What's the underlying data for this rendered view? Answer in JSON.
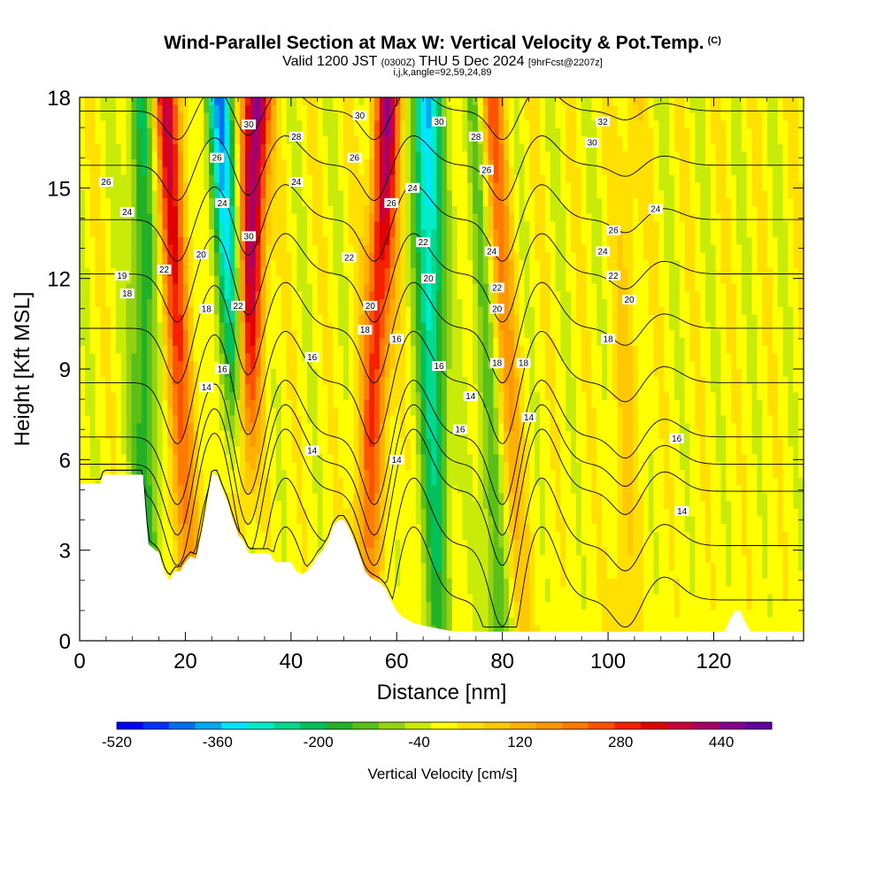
{
  "header": {
    "title": "Wind-Parallel Section at Max W: Vertical Velocity & Pot.Temp.",
    "copyright": "(C)",
    "valid_a": "Valid 1200 JST",
    "valid_b": "(0300Z)",
    "valid_c": "THU 5 Dec 2024",
    "valid_d": "[9hrFcst@2207z]",
    "indices": "i,j,k,angle=92,59,24,89"
  },
  "chart_data": {
    "type": "heatmap",
    "xlabel": "Distance [nm]",
    "ylabel": "Height [Kft MSL]",
    "xlim": [
      0,
      137
    ],
    "ylim": [
      0,
      18
    ],
    "x_ticks": [
      0,
      20,
      40,
      60,
      80,
      100,
      120
    ],
    "y_ticks": [
      0,
      3,
      6,
      9,
      12,
      15,
      18
    ],
    "colorbar_label": "Vertical Velocity [cm/s]",
    "colorbar_range": [
      -520,
      520
    ],
    "colorbar_ticks": [
      -520,
      -360,
      -200,
      -40,
      120,
      280,
      440
    ],
    "colorbar_colors": [
      "#0000ff",
      "#0033ff",
      "#0070f0",
      "#00a8f0",
      "#00e6ff",
      "#00ebc8",
      "#00d890",
      "#00c05a",
      "#22b026",
      "#5ac018",
      "#96d214",
      "#c8eb0a",
      "#ffff00",
      "#ffe000",
      "#ffc800",
      "#ffb000",
      "#ff9800",
      "#ff7a00",
      "#ff5200",
      "#f52000",
      "#e00000",
      "#c8003c",
      "#a80064",
      "#880090",
      "#6000a0"
    ],
    "updraft_bands": [
      {
        "x_base": 21.0,
        "x_top": 16.5,
        "value": 360
      },
      {
        "x_base": 30.0,
        "x_top": 33.5,
        "value": 500
      },
      {
        "x_base": 53.5,
        "x_top": 58.5,
        "value": 420
      },
      {
        "x_base": 83.0,
        "x_top": 77.5,
        "value": 280
      },
      {
        "x_base": 103.0,
        "x_top": 104.0,
        "value": 60
      }
    ],
    "downdraft_bands": [
      {
        "x_base": 32.0,
        "x_top": 26.5,
        "value": -380
      },
      {
        "x_base": 68.0,
        "x_top": 65.5,
        "value": -400
      },
      {
        "x_base": 13.0,
        "x_top": 11.5,
        "value": -180
      },
      {
        "x_base": 80.0,
        "x_top": 75.0,
        "value": -160
      }
    ],
    "terrain": [
      [
        0,
        5.2
      ],
      [
        4,
        5.2
      ],
      [
        4.5,
        5.5
      ],
      [
        12,
        5.5
      ],
      [
        12.5,
        4.3
      ],
      [
        13,
        3.2
      ],
      [
        15,
        2.9
      ],
      [
        16,
        2.3
      ],
      [
        17,
        2
      ],
      [
        18,
        2.3
      ],
      [
        19,
        2.3
      ],
      [
        20,
        2.6
      ],
      [
        21,
        2.8
      ],
      [
        22,
        2.7
      ],
      [
        23,
        3.5
      ],
      [
        24,
        4.5
      ],
      [
        25,
        5.5
      ],
      [
        26,
        5.5
      ],
      [
        27,
        5
      ],
      [
        28,
        4.6
      ],
      [
        29,
        4
      ],
      [
        30,
        3.5
      ],
      [
        31,
        3.3
      ],
      [
        32,
        2.9
      ],
      [
        36,
        2.9
      ],
      [
        37,
        2.6
      ],
      [
        38,
        2.6
      ],
      [
        40,
        2.6
      ],
      [
        41,
        2.3
      ],
      [
        42,
        2.2
      ],
      [
        43,
        2.3
      ],
      [
        44,
        2.5
      ],
      [
        45,
        2.8
      ],
      [
        46,
        3
      ],
      [
        47,
        3.3
      ],
      [
        48,
        3.8
      ],
      [
        49,
        4
      ],
      [
        50,
        4
      ],
      [
        51,
        3.7
      ],
      [
        52,
        3.3
      ],
      [
        53,
        2.8
      ],
      [
        54,
        2.3
      ],
      [
        55,
        2.1
      ],
      [
        57,
        1.9
      ],
      [
        58,
        1.7
      ],
      [
        59,
        1.3
      ],
      [
        60,
        1
      ],
      [
        61,
        0.8
      ],
      [
        63,
        0.6
      ],
      [
        65,
        0.5
      ],
      [
        68,
        0.4
      ],
      [
        71,
        0.3
      ],
      [
        90,
        0.3
      ],
      [
        122,
        0.3
      ],
      [
        123,
        0.7
      ],
      [
        124,
        1
      ],
      [
        125,
        1
      ],
      [
        126,
        0.6
      ],
      [
        127,
        0.3
      ],
      [
        137,
        0.3
      ]
    ],
    "contours": [
      {
        "level": 14,
        "labels": [
          [
            24,
            8.4
          ],
          [
            44,
            6.3
          ],
          [
            60,
            6.0
          ],
          [
            74,
            8.1
          ],
          [
            85,
            7.4
          ],
          [
            114,
            4.3
          ]
        ]
      },
      {
        "level": 16,
        "labels": [
          [
            27,
            9.0
          ],
          [
            44,
            9.4
          ],
          [
            60,
            10.0
          ],
          [
            68,
            9.1
          ],
          [
            72,
            7.0
          ],
          [
            113,
            6.7
          ]
        ]
      },
      {
        "level": 18,
        "labels": [
          [
            9,
            11.5
          ],
          [
            24,
            11.0
          ],
          [
            54,
            10.3
          ],
          [
            79,
            9.2
          ],
          [
            84,
            9.2
          ],
          [
            100,
            10.0
          ]
        ]
      },
      {
        "level": 19,
        "labels": [
          [
            8,
            12.1
          ]
        ]
      },
      {
        "level": 20,
        "labels": [
          [
            23,
            12.8
          ],
          [
            55,
            11.1
          ],
          [
            66,
            12.0
          ],
          [
            79,
            11.0
          ],
          [
            104,
            11.3
          ]
        ]
      },
      {
        "level": 22,
        "labels": [
          [
            16,
            12.3
          ],
          [
            30,
            11.1
          ],
          [
            51,
            12.7
          ],
          [
            65,
            13.2
          ],
          [
            79,
            11.7
          ],
          [
            101,
            12.1
          ]
        ]
      },
      {
        "level": 24,
        "labels": [
          [
            9,
            14.2
          ],
          [
            27,
            14.5
          ],
          [
            41,
            15.2
          ],
          [
            63,
            15.0
          ],
          [
            78,
            12.9
          ],
          [
            99,
            12.9
          ],
          [
            109,
            14.3
          ]
        ]
      },
      {
        "level": 26,
        "labels": [
          [
            5,
            15.2
          ],
          [
            26,
            16.0
          ],
          [
            52,
            16.0
          ],
          [
            59,
            14.5
          ],
          [
            77,
            15.6
          ],
          [
            101,
            13.6
          ]
        ]
      },
      {
        "level": 28,
        "labels": [
          [
            18,
            18.1
          ],
          [
            35,
            18.3
          ],
          [
            41,
            16.7
          ],
          [
            75,
            16.7
          ]
        ]
      },
      {
        "level": 30,
        "labels": [
          [
            14,
            18.4
          ],
          [
            32,
            17.1
          ],
          [
            53,
            17.4
          ],
          [
            32,
            13.4
          ],
          [
            68,
            17.2
          ],
          [
            97,
            16.5
          ]
        ]
      },
      {
        "level": 32,
        "labels": [
          [
            99,
            17.2
          ]
        ]
      }
    ]
  }
}
